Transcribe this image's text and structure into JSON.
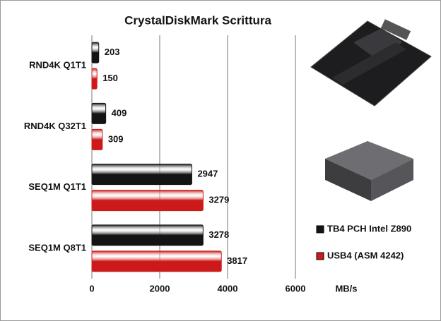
{
  "chart_data": {
    "type": "bar",
    "orientation": "horizontal",
    "title": "CrystalDiskMark  Scrittura",
    "categories": [
      "RND4K Q1T1",
      "RND4K Q32T1",
      "SEQ1M Q1T1",
      "SEQ1M Q8T1"
    ],
    "series": [
      {
        "name": "TB4 PCH Intel Z890",
        "color": "#141414",
        "values": [
          203,
          409,
          2947,
          3278
        ]
      },
      {
        "name": "USB4 (ASM 4242)",
        "color": "#cc1a1a",
        "values": [
          150,
          309,
          3279,
          3817
        ]
      }
    ],
    "xlabel": "MB/s",
    "xlim": [
      0,
      6000
    ],
    "xticks": [
      0,
      2000,
      4000,
      6000
    ],
    "grid": true
  }
}
